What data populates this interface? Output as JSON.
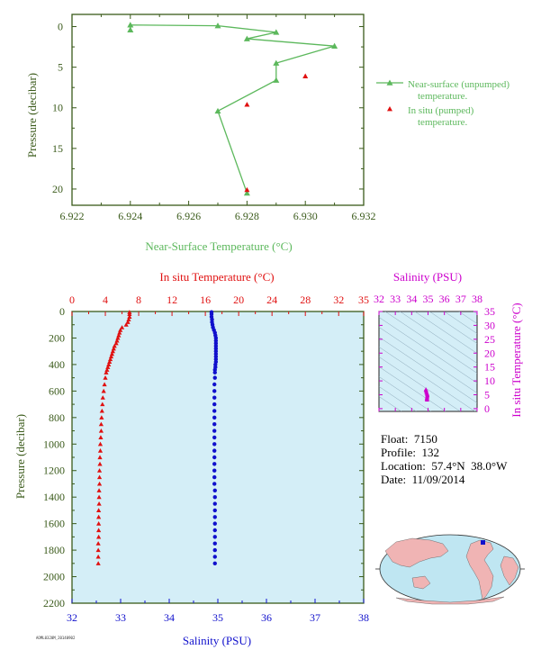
{
  "colors": {
    "axis": "#3a5a1a",
    "surface": "#5cb85c",
    "insitu": "#e01010",
    "salinity": "#1010cc",
    "ts": "#cc00cc",
    "panel_bg": "#d4eef7"
  },
  "legend": {
    "near_surface": "Near-surface (unpumped) temperature.",
    "insitu": "In situ (pumped) temperature."
  },
  "meta": {
    "float": "Float:  7150",
    "profile": "Profile:  132",
    "location": "Location:  57.4°N  38.0°W",
    "date": "Date:  11/09/2014"
  },
  "footer_code": "AOML0320M_20140902",
  "chart_data": [
    {
      "type": "line",
      "xlabel": "Near-Surface Temperature (°C)",
      "ylabel": "Pressure (decibar)",
      "xlim": [
        6.922,
        6.932
      ],
      "ylim": [
        22,
        -1.5
      ],
      "xticks": [
        "6.922",
        "6.924",
        "6.926",
        "6.928",
        "6.930",
        "6.932"
      ],
      "yticks": [
        "0",
        "5",
        "10",
        "15",
        "20"
      ],
      "series": [
        {
          "name": "Near-surface (unpumped) temperature.",
          "x": [
            6.924,
            6.924,
            6.927,
            6.929,
            6.928,
            6.931,
            6.929,
            6.929,
            6.927,
            6.928
          ],
          "y": [
            0.4,
            -0.2,
            -0.1,
            0.7,
            1.5,
            2.4,
            4.5,
            6.6,
            10.4,
            20.5
          ]
        },
        {
          "name": "In situ (pumped) temperature.",
          "x": [
            6.93,
            6.928,
            6.928
          ],
          "y": [
            6.1,
            9.6,
            20.1
          ]
        }
      ]
    },
    {
      "type": "scatter",
      "xlabel_top": "In situ Temperature (°C)",
      "xlabel_bottom": "Salinity (PSU)",
      "ylabel": "Pressure (decibar)",
      "temp_lim": [
        0,
        35
      ],
      "sal_lim": [
        32,
        38
      ],
      "ylim": [
        0,
        2200
      ],
      "temp_ticks": [
        "0",
        "4",
        "8",
        "12",
        "16",
        "20",
        "24",
        "28",
        "32",
        "35"
      ],
      "sal_ticks": [
        "32",
        "33",
        "34",
        "35",
        "36",
        "37",
        "38"
      ],
      "yticks": [
        "0",
        "200",
        "400",
        "600",
        "800",
        "1000",
        "1200",
        "1400",
        "1600",
        "1800",
        "2000",
        "2200"
      ],
      "temperature": {
        "p": [
          5,
          20,
          40,
          60,
          80,
          100,
          120,
          140,
          160,
          180,
          200,
          220,
          240,
          260,
          280,
          300,
          320,
          340,
          360,
          380,
          400,
          420,
          440,
          460,
          500,
          550,
          600,
          650,
          700,
          750,
          800,
          850,
          900,
          950,
          1000,
          1050,
          1100,
          1150,
          1200,
          1250,
          1300,
          1350,
          1400,
          1450,
          1500,
          1550,
          1600,
          1650,
          1700,
          1750,
          1800,
          1850,
          1900
        ],
        "values": [
          6.9,
          6.9,
          6.9,
          6.8,
          6.7,
          6.5,
          6.0,
          5.8,
          5.7,
          5.6,
          5.5,
          5.4,
          5.3,
          5.1,
          5.0,
          4.9,
          4.8,
          4.7,
          4.6,
          4.5,
          4.4,
          4.3,
          4.2,
          4.1,
          4.0,
          3.9,
          3.8,
          3.7,
          3.65,
          3.6,
          3.55,
          3.5,
          3.5,
          3.45,
          3.4,
          3.4,
          3.35,
          3.35,
          3.3,
          3.3,
          3.3,
          3.25,
          3.25,
          3.25,
          3.2,
          3.2,
          3.2,
          3.2,
          3.2,
          3.15,
          3.15,
          3.15,
          3.15
        ]
      },
      "salinity": {
        "p": [
          5,
          20,
          40,
          60,
          80,
          100,
          120,
          140,
          160,
          180,
          200,
          220,
          240,
          260,
          280,
          300,
          320,
          340,
          360,
          380,
          400,
          420,
          440,
          460,
          500,
          550,
          600,
          650,
          700,
          750,
          800,
          850,
          900,
          950,
          1000,
          1050,
          1100,
          1150,
          1200,
          1250,
          1300,
          1350,
          1400,
          1450,
          1500,
          1550,
          1600,
          1650,
          1700,
          1750,
          1800,
          1850,
          1900
        ],
        "values": [
          34.87,
          34.87,
          34.87,
          34.88,
          34.88,
          34.89,
          34.9,
          34.92,
          34.94,
          34.95,
          34.96,
          34.96,
          34.96,
          34.96,
          34.96,
          34.96,
          34.96,
          34.96,
          34.96,
          34.96,
          34.95,
          34.95,
          34.94,
          34.94,
          34.94,
          34.93,
          34.93,
          34.93,
          34.93,
          34.93,
          34.93,
          34.93,
          34.93,
          34.93,
          34.93,
          34.93,
          34.93,
          34.93,
          34.93,
          34.93,
          34.93,
          34.94,
          34.94,
          34.94,
          34.94,
          34.94,
          34.94,
          34.94,
          34.94,
          34.94,
          34.94,
          34.94,
          34.94
        ]
      }
    },
    {
      "type": "scatter",
      "xlabel": "Salinity (PSU)",
      "ylabel": "In situ Temperature (°C)",
      "xlim": [
        32,
        38
      ],
      "ylim": [
        -1,
        35
      ],
      "xticks": [
        "32",
        "33",
        "34",
        "35",
        "36",
        "37",
        "38"
      ],
      "yticks": [
        "0",
        "5",
        "10",
        "15",
        "20",
        "25",
        "30",
        "35"
      ],
      "points_s": [
        34.87,
        34.88,
        34.9,
        34.93,
        34.95,
        34.96,
        34.95,
        34.94,
        34.93,
        34.94
      ],
      "points_t": [
        6.9,
        6.6,
        6.0,
        5.6,
        5.2,
        4.8,
        4.4,
        4.0,
        3.6,
        3.2
      ]
    }
  ]
}
